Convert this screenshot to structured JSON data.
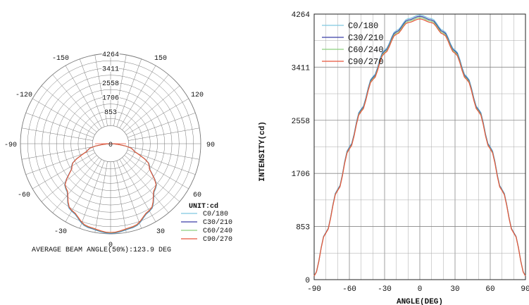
{
  "chart_data": [
    {
      "type": "polar",
      "radial_max": 4264,
      "radial_ticks": [
        "853",
        "1706",
        "2558",
        "3411",
        "4264"
      ],
      "angle_labels": [
        "0",
        "30",
        "60",
        "90",
        "120",
        "150",
        "-150",
        "-120",
        "-90",
        "-60",
        "-30"
      ],
      "center_label": "0",
      "unit_label": "UNIT:cd",
      "footer": "AVERAGE BEAM ANGLE(50%):123.9 DEG",
      "series": [
        {
          "name": "C0/180",
          "color": "#7fc8e0"
        },
        {
          "name": "C30/210",
          "color": "#3b3fa8"
        },
        {
          "name": "C60/240",
          "color": "#8ccf7e"
        },
        {
          "name": "C90/270",
          "color": "#e8553b"
        }
      ],
      "angles": [
        -90,
        -75,
        -60,
        -45,
        -30,
        -15,
        0,
        15,
        30,
        45,
        60,
        75,
        90
      ],
      "intensity": [
        60,
        1100,
        2130,
        3010,
        3690,
        4110,
        4250,
        4110,
        3690,
        3010,
        2130,
        1100,
        60
      ]
    },
    {
      "type": "line",
      "xlabel": "ANGLE(DEG)",
      "ylabel": "INTENSITY(cd)",
      "xlim": [
        -90,
        90
      ],
      "ylim": [
        0,
        4264
      ],
      "x_ticks": [
        "-90",
        "-60",
        "-30",
        "0",
        "30",
        "60",
        "90"
      ],
      "y_ticks": [
        "0",
        "853",
        "1706",
        "2558",
        "3411",
        "4264"
      ],
      "series": [
        {
          "name": "C0/180",
          "color": "#7fc8e0"
        },
        {
          "name": "C30/210",
          "color": "#3b3fa8"
        },
        {
          "name": "C60/240",
          "color": "#8ccf7e"
        },
        {
          "name": "C90/270",
          "color": "#e8553b"
        }
      ],
      "x": [
        -90,
        -80,
        -70,
        -60,
        -50,
        -40,
        -30,
        -20,
        -10,
        0,
        10,
        20,
        30,
        40,
        50,
        60,
        70,
        80,
        90
      ],
      "y": [
        60,
        760,
        1450,
        2130,
        2740,
        3260,
        3690,
        4000,
        4190,
        4250,
        4190,
        4000,
        3690,
        3260,
        2740,
        2130,
        1450,
        760,
        60
      ]
    }
  ]
}
